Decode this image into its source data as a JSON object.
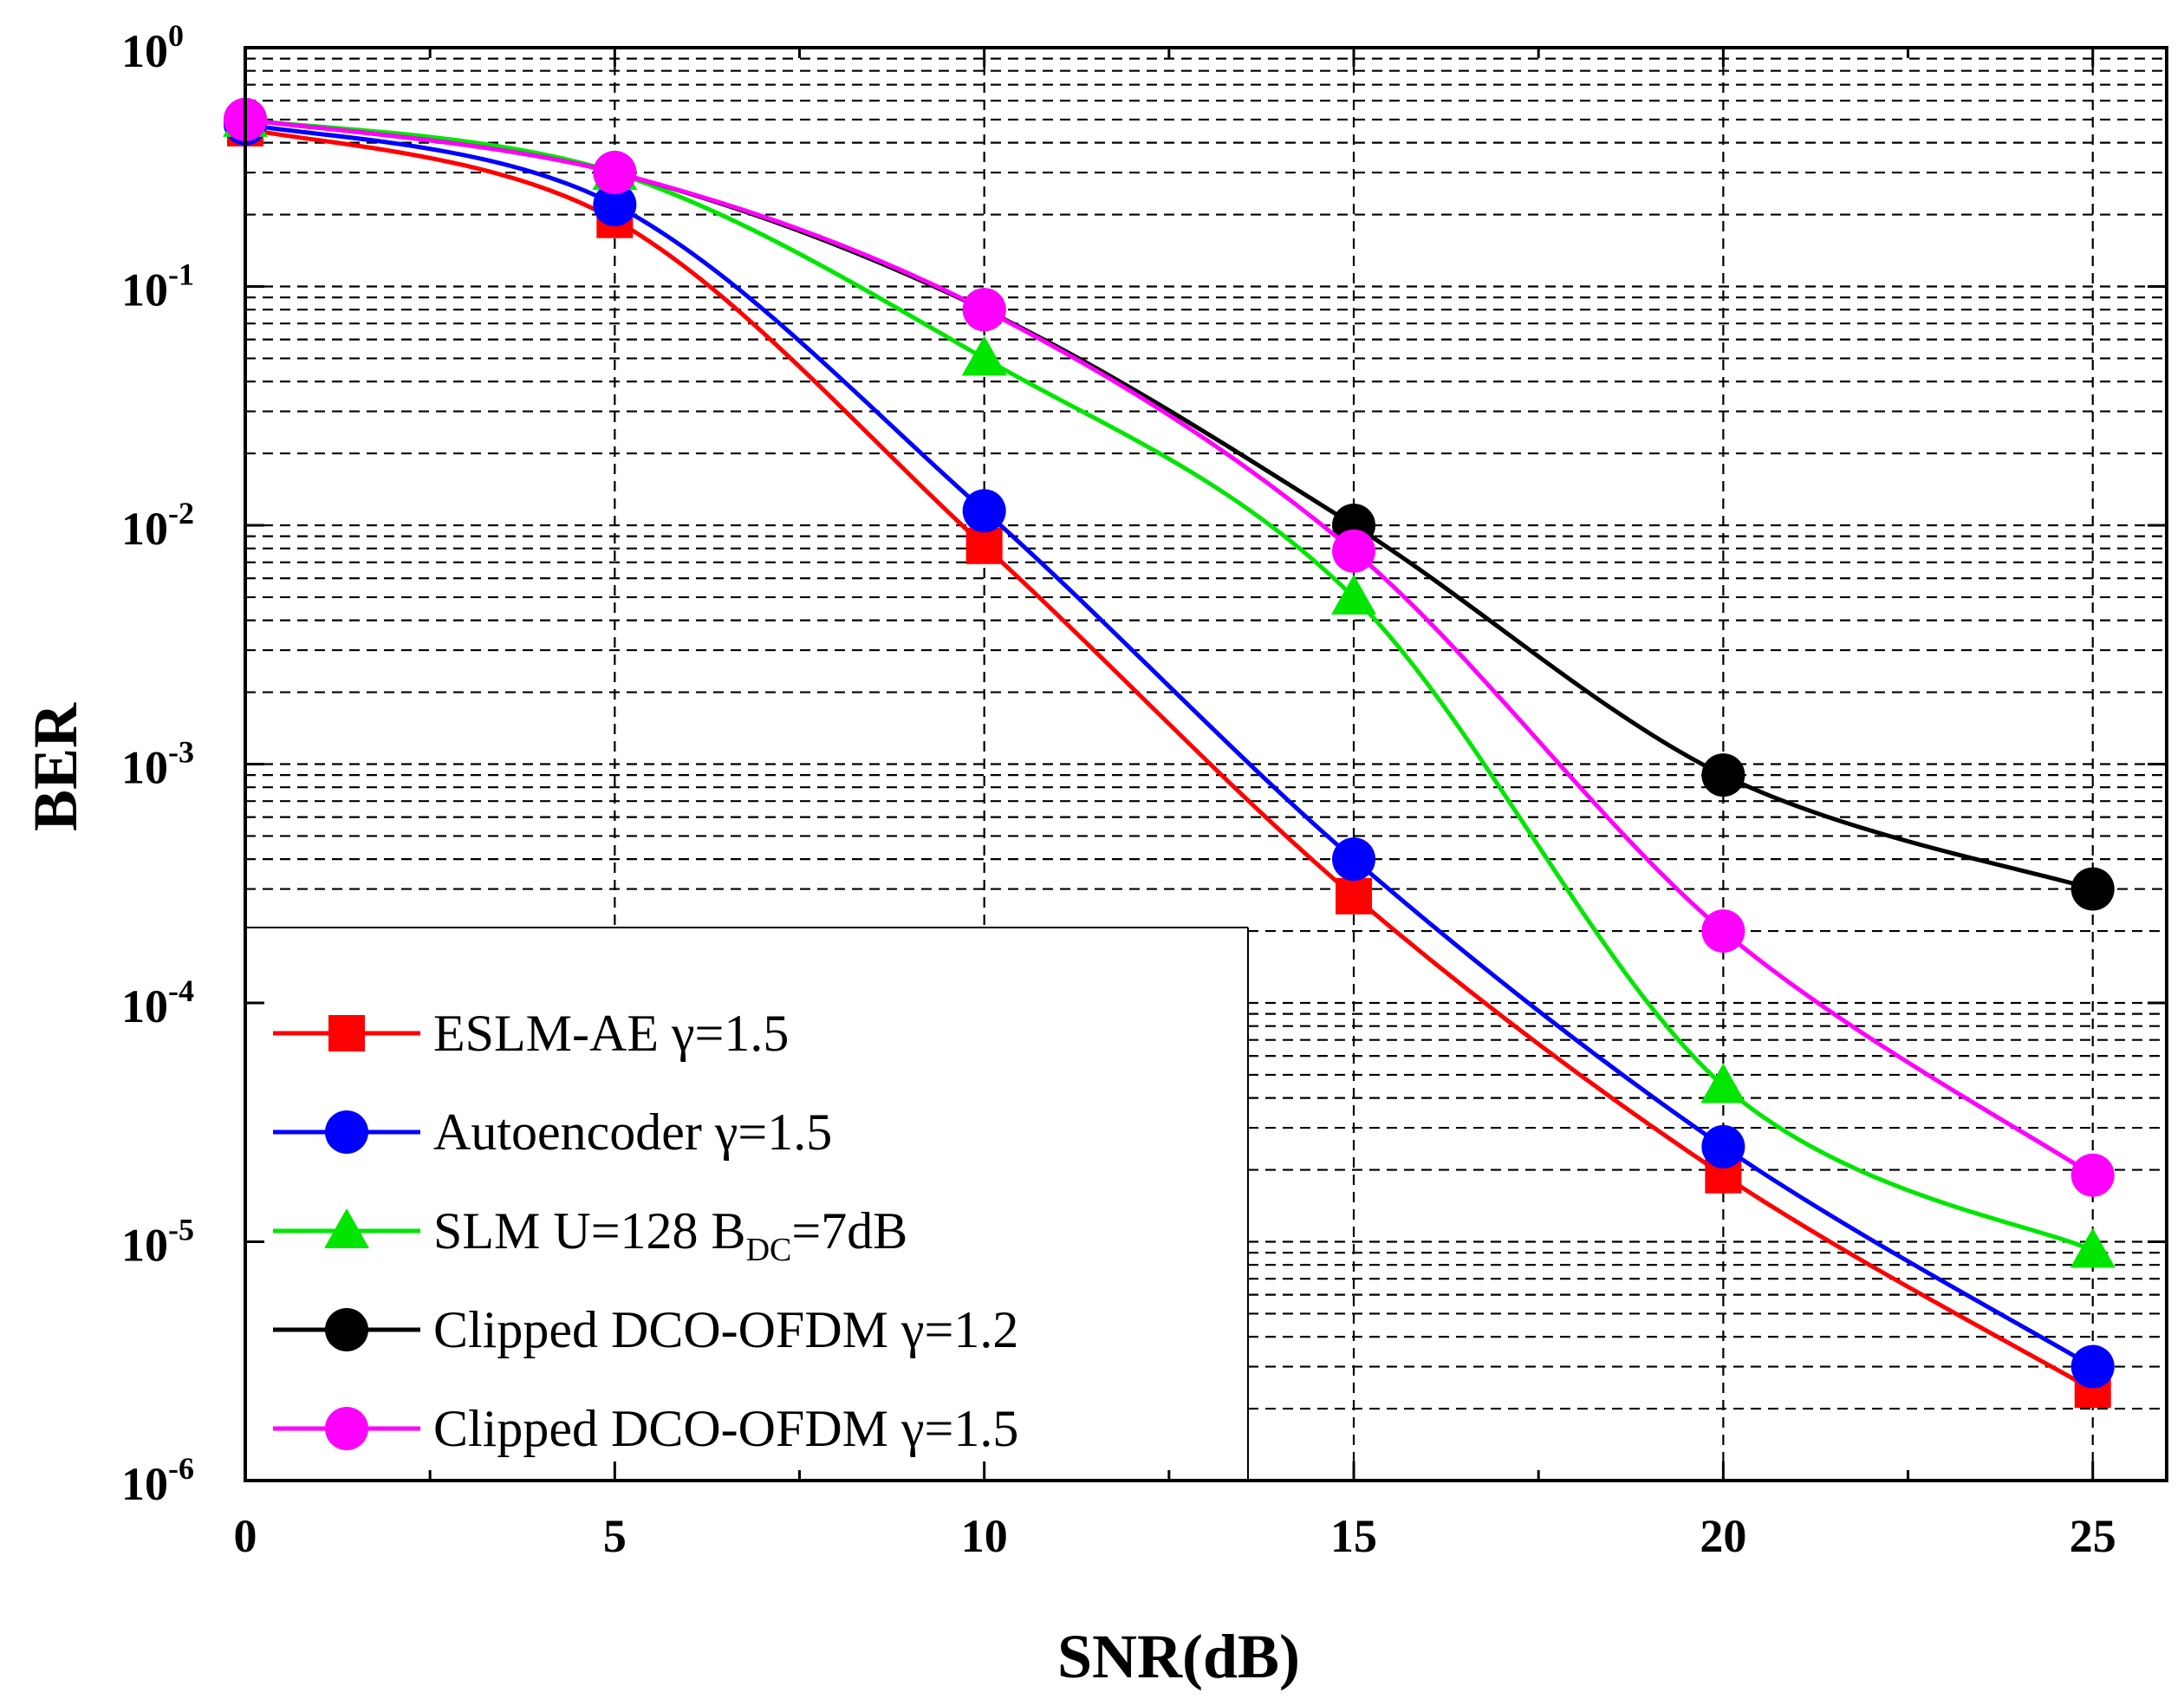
{
  "chart_data": {
    "type": "line",
    "xlabel": "SNR(dB)",
    "ylabel": "BER",
    "xscale": "linear",
    "yscale": "log",
    "xlim": [
      0,
      26
    ],
    "ylim": [
      1e-06,
      1
    ],
    "grid": true,
    "legend_position": "bottom-left",
    "x_ticks": [
      {
        "v": 0,
        "label": "0"
      },
      {
        "v": 5,
        "label": "5"
      },
      {
        "v": 10,
        "label": "10"
      },
      {
        "v": 15,
        "label": "15"
      },
      {
        "v": 20,
        "label": "20"
      },
      {
        "v": 25,
        "label": "25"
      }
    ],
    "y_ticks": [
      {
        "exp": 0,
        "base": "10",
        "sup": "0"
      },
      {
        "exp": -1,
        "base": "10",
        "sup": "-1"
      },
      {
        "exp": -2,
        "base": "10",
        "sup": "-2"
      },
      {
        "exp": -3,
        "base": "10",
        "sup": "-3"
      },
      {
        "exp": -4,
        "base": "10",
        "sup": "-4"
      },
      {
        "exp": -5,
        "base": "10",
        "sup": "-5"
      },
      {
        "exp": -6,
        "base": "10",
        "sup": "-6"
      }
    ],
    "x": [
      0,
      5,
      10,
      15,
      20,
      25
    ],
    "series": [
      {
        "name": "ESLM-AE γ=1.5",
        "label_main": "ESLM-AE γ=1.5",
        "label_sub": "",
        "label_tail": "",
        "color": "#ff0000",
        "marker": "square",
        "values": [
          0.46,
          0.19,
          0.0082,
          0.00028,
          1.9e-05,
          2.4e-06
        ]
      },
      {
        "name": "Autoencoder γ=1.5",
        "label_main": "Autoencoder γ=1.5",
        "label_sub": "",
        "label_tail": "",
        "color": "#0000ff",
        "marker": "circle",
        "values": [
          0.48,
          0.22,
          0.0115,
          0.0004,
          2.5e-05,
          3e-06
        ]
      },
      {
        "name": "SLM U=128 BDC=7dB",
        "label_main": "SLM U=128 B",
        "label_sub": "DC",
        "label_tail": "=7dB",
        "color": "#00e600",
        "marker": "triangle",
        "values": [
          0.5,
          0.3,
          0.05,
          0.005,
          4.5e-05,
          9.2e-06
        ]
      },
      {
        "name": "Clipped DCO-OFDM γ=1.2",
        "label_main": "Clipped DCO-OFDM γ=1.2",
        "label_sub": "",
        "label_tail": "",
        "color": "#000000",
        "marker": "circle",
        "values": [
          0.5,
          0.3,
          0.08,
          0.01,
          0.0009,
          0.0003
        ]
      },
      {
        "name": "Clipped DCO-OFDM γ=1.5",
        "label_main": "Clipped DCO-OFDM γ=1.5",
        "label_sub": "",
        "label_tail": "",
        "color": "#ff00ff",
        "marker": "circle",
        "values": [
          0.5,
          0.3,
          0.08,
          0.0078,
          0.0002,
          1.9e-05
        ]
      }
    ]
  }
}
